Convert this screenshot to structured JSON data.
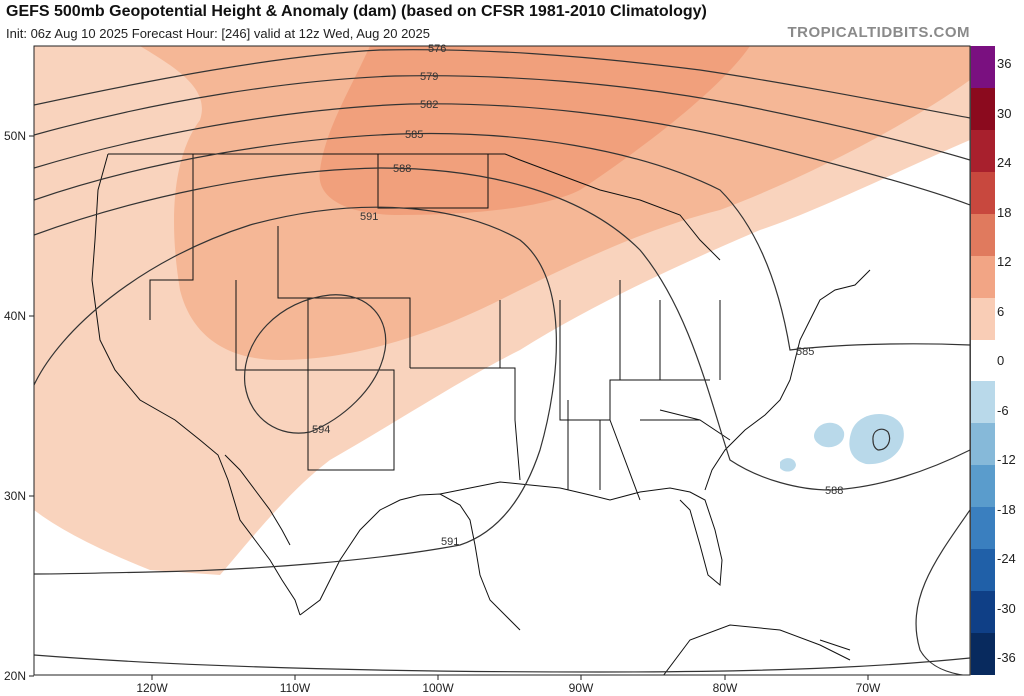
{
  "header": {
    "title": "GEFS 500mb Geopotential Height & Anomaly (dam) (based on CFSR 1981-2010 Climatology)",
    "subtitle": "Init: 06z Aug 10 2025   Forecast Hour: [246]   valid at 12z Wed, Aug 20 2025",
    "brand": "TROPICALTIDBITS.COM"
  },
  "map": {
    "lat_labels": [
      "50N",
      "40N",
      "30N",
      "20N"
    ],
    "lon_labels": [
      "120W",
      "110W",
      "100W",
      "90W",
      "80W",
      "70W"
    ],
    "contour_labels": [
      "576",
      "579",
      "582",
      "585",
      "588",
      "591",
      "594",
      "585",
      "588",
      "591"
    ]
  },
  "colorbar": {
    "labels": [
      "36",
      "30",
      "24",
      "18",
      "12",
      "6",
      "0",
      "-6",
      "-12",
      "-18",
      "-24",
      "-30",
      "-36"
    ],
    "colors": [
      "#7a1080",
      "#8b0a1e",
      "#a8202d",
      "#c8483e",
      "#e07a5e",
      "#f2a585",
      "#f9cdb6",
      "#ffffff",
      "#b9d9ea",
      "#86b9d9",
      "#5a9ccc",
      "#3a7fbf",
      "#2060a8",
      "#0f3f86",
      "#082a5e"
    ]
  }
}
